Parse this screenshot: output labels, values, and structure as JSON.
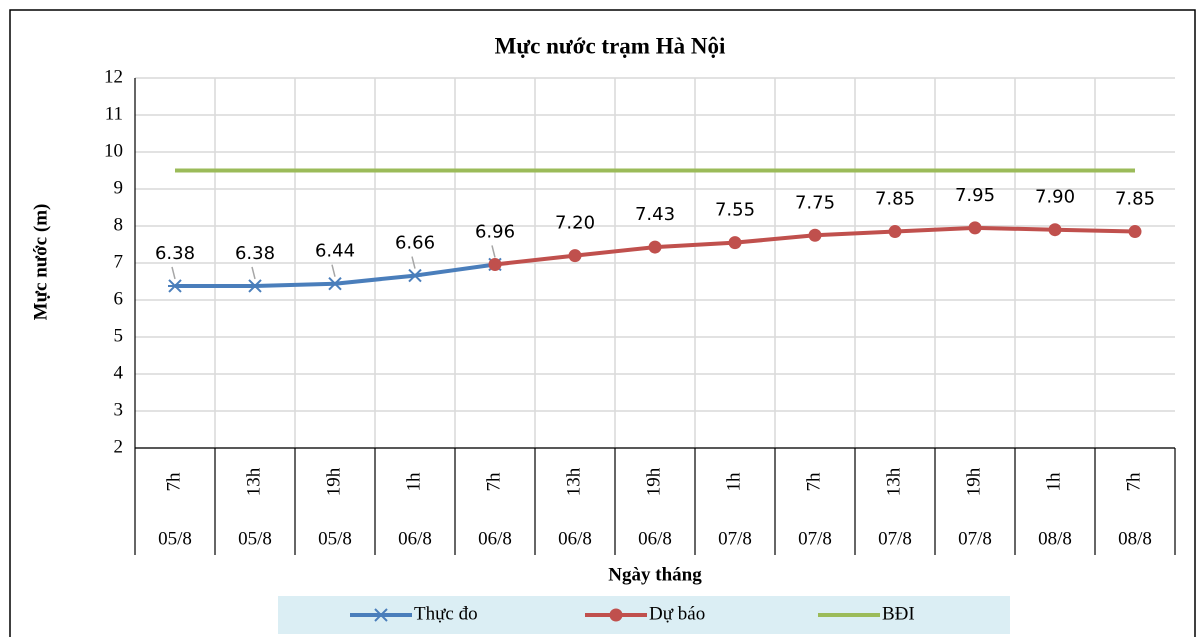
{
  "chart_data": {
    "type": "line",
    "title": "Mực nước trạm Hà Nội",
    "y_label": "Mực nước (m)",
    "x_label": "Ngày tháng",
    "categories": [
      "7h",
      "13h",
      "19h",
      "1h",
      "7h",
      "13h",
      "19h",
      "1h",
      "7h",
      "13h",
      "19h",
      "1h",
      "7h"
    ],
    "category_groups": [
      "05/8",
      "05/8",
      "05/8",
      "06/8",
      "06/8",
      "06/8",
      "06/8",
      "07/8",
      "07/8",
      "07/8",
      "07/8",
      "08/8",
      "08/8"
    ],
    "ylim": [
      2,
      12
    ],
    "yticks": [
      2,
      3,
      4,
      5,
      6,
      7,
      8,
      9,
      10,
      11,
      12
    ],
    "grid": true,
    "series": [
      {
        "name": "Thực đo",
        "color": "#4a7ebb",
        "marker": "star",
        "label_leaders": true,
        "values": [
          6.38,
          6.38,
          6.44,
          6.66,
          6.96,
          null,
          null,
          null,
          null,
          null,
          null,
          null,
          null
        ],
        "value_labels": [
          "6.38",
          "6.38",
          "6.44",
          "6.66",
          "6.96",
          null,
          null,
          null,
          null,
          null,
          null,
          null,
          null
        ]
      },
      {
        "name": "Dự báo",
        "color": "#c0504d",
        "marker": "circle",
        "values": [
          null,
          null,
          null,
          null,
          6.96,
          7.2,
          7.43,
          7.55,
          7.75,
          7.85,
          7.95,
          7.9,
          7.85
        ],
        "value_labels": [
          null,
          null,
          null,
          null,
          null,
          "7.20",
          "7.43",
          "7.55",
          "7.75",
          "7.85",
          "7.95",
          "7.90",
          "7.85"
        ]
      },
      {
        "name": "BĐI",
        "color": "#9bbb59",
        "marker": "none",
        "values": [
          9.5,
          9.5,
          9.5,
          9.5,
          9.5,
          9.5,
          9.5,
          9.5,
          9.5,
          9.5,
          9.5,
          9.5,
          9.5
        ]
      }
    ]
  }
}
